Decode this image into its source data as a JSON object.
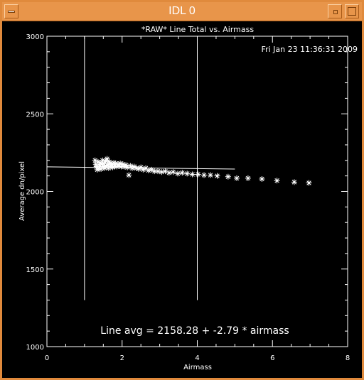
{
  "window": {
    "title": "IDL 0",
    "icons": {
      "menu": "window-menu-icon",
      "minimize": "minimize-icon",
      "maximize": "maximize-icon"
    }
  },
  "chart_data": {
    "type": "scatter",
    "title": "*RAW* Line Total vs. Airmass",
    "xlabel": "Airmass",
    "ylabel": "Average dn/pixel",
    "xlim": [
      0,
      8
    ],
    "ylim": [
      1000,
      3000
    ],
    "xticks": [
      "0",
      "2",
      "4",
      "6",
      "8"
    ],
    "yticks": [
      "1000",
      "1500",
      "2000",
      "2500",
      "3000"
    ],
    "timestamp": "Fri Jan 23 11:36:31 2009",
    "annotation": "Line avg =  2158.28 + -2.79 * airmass",
    "grid": false,
    "marker": "asterisk",
    "colors": {
      "background": "#000000",
      "foreground": "#ffffff"
    },
    "vlines": [
      1.0,
      4.0
    ],
    "vline_range": [
      1300,
      3000
    ],
    "fit_line": {
      "x": [
        0,
        5.0
      ],
      "y": [
        2158.28,
        2144.33
      ]
    },
    "points": [
      {
        "x": 1.28,
        "y": 2200
      },
      {
        "x": 1.3,
        "y": 2175
      },
      {
        "x": 1.32,
        "y": 2160
      },
      {
        "x": 1.34,
        "y": 2140
      },
      {
        "x": 1.36,
        "y": 2190
      },
      {
        "x": 1.38,
        "y": 2150
      },
      {
        "x": 1.4,
        "y": 2170
      },
      {
        "x": 1.42,
        "y": 2185
      },
      {
        "x": 1.44,
        "y": 2145
      },
      {
        "x": 1.46,
        "y": 2175
      },
      {
        "x": 1.48,
        "y": 2200
      },
      {
        "x": 1.5,
        "y": 2160
      },
      {
        "x": 1.52,
        "y": 2180
      },
      {
        "x": 1.54,
        "y": 2150
      },
      {
        "x": 1.56,
        "y": 2195
      },
      {
        "x": 1.58,
        "y": 2165
      },
      {
        "x": 1.6,
        "y": 2210
      },
      {
        "x": 1.62,
        "y": 2170
      },
      {
        "x": 1.64,
        "y": 2150
      },
      {
        "x": 1.66,
        "y": 2190
      },
      {
        "x": 1.68,
        "y": 2180
      },
      {
        "x": 1.7,
        "y": 2160
      },
      {
        "x": 1.72,
        "y": 2175
      },
      {
        "x": 1.75,
        "y": 2155
      },
      {
        "x": 1.78,
        "y": 2185
      },
      {
        "x": 1.8,
        "y": 2165
      },
      {
        "x": 1.83,
        "y": 2180
      },
      {
        "x": 1.86,
        "y": 2160
      },
      {
        "x": 1.89,
        "y": 2175
      },
      {
        "x": 1.92,
        "y": 2165
      },
      {
        "x": 1.95,
        "y": 2180
      },
      {
        "x": 1.98,
        "y": 2160
      },
      {
        "x": 2.02,
        "y": 2175
      },
      {
        "x": 2.06,
        "y": 2160
      },
      {
        "x": 2.1,
        "y": 2170
      },
      {
        "x": 2.14,
        "y": 2155
      },
      {
        "x": 2.18,
        "y": 2105
      },
      {
        "x": 2.22,
        "y": 2165
      },
      {
        "x": 2.27,
        "y": 2150
      },
      {
        "x": 2.32,
        "y": 2160
      },
      {
        "x": 2.38,
        "y": 2150
      },
      {
        "x": 2.44,
        "y": 2145
      },
      {
        "x": 2.5,
        "y": 2155
      },
      {
        "x": 2.56,
        "y": 2140
      },
      {
        "x": 2.63,
        "y": 2150
      },
      {
        "x": 2.7,
        "y": 2135
      },
      {
        "x": 2.78,
        "y": 2140
      },
      {
        "x": 2.86,
        "y": 2130
      },
      {
        "x": 2.95,
        "y": 2130
      },
      {
        "x": 3.05,
        "y": 2125
      },
      {
        "x": 3.15,
        "y": 2130
      },
      {
        "x": 3.25,
        "y": 2120
      },
      {
        "x": 3.36,
        "y": 2125
      },
      {
        "x": 3.48,
        "y": 2115
      },
      {
        "x": 3.6,
        "y": 2120
      },
      {
        "x": 3.73,
        "y": 2115
      },
      {
        "x": 3.87,
        "y": 2110
      },
      {
        "x": 4.02,
        "y": 2110
      },
      {
        "x": 4.18,
        "y": 2105
      },
      {
        "x": 4.35,
        "y": 2105
      },
      {
        "x": 4.53,
        "y": 2100
      },
      {
        "x": 4.82,
        "y": 2095
      },
      {
        "x": 5.05,
        "y": 2085
      },
      {
        "x": 5.35,
        "y": 2085
      },
      {
        "x": 5.72,
        "y": 2080
      },
      {
        "x": 6.12,
        "y": 2070
      },
      {
        "x": 6.58,
        "y": 2060
      },
      {
        "x": 6.97,
        "y": 2055
      }
    ]
  }
}
